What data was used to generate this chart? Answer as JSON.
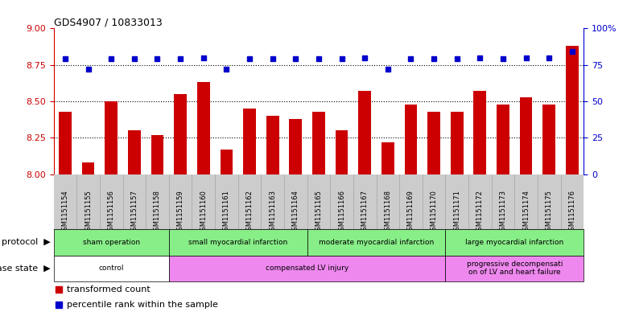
{
  "title": "GDS4907 / 10833013",
  "samples": [
    "GSM1151154",
    "GSM1151155",
    "GSM1151156",
    "GSM1151157",
    "GSM1151158",
    "GSM1151159",
    "GSM1151160",
    "GSM1151161",
    "GSM1151162",
    "GSM1151163",
    "GSM1151164",
    "GSM1151165",
    "GSM1151166",
    "GSM1151167",
    "GSM1151168",
    "GSM1151169",
    "GSM1151170",
    "GSM1151171",
    "GSM1151172",
    "GSM1151173",
    "GSM1151174",
    "GSM1151175",
    "GSM1151176"
  ],
  "bar_values": [
    8.43,
    8.08,
    8.5,
    8.3,
    8.27,
    8.55,
    8.63,
    8.17,
    8.45,
    8.4,
    8.38,
    8.43,
    8.3,
    8.57,
    8.22,
    8.48,
    8.43,
    8.43,
    8.57,
    8.48,
    8.53,
    8.48,
    8.88
  ],
  "percentile_values": [
    79,
    72,
    79,
    79,
    79,
    79,
    80,
    72,
    79,
    79,
    79,
    79,
    79,
    80,
    72,
    79,
    79,
    79,
    80,
    79,
    80,
    80,
    84
  ],
  "bar_color": "#cc0000",
  "dot_color": "#0000cc",
  "ylim_left": [
    8.0,
    9.0
  ],
  "ylim_right": [
    0,
    100
  ],
  "yticks_left": [
    8.0,
    8.25,
    8.5,
    8.75,
    9.0
  ],
  "yticks_right": [
    0,
    25,
    50,
    75,
    100
  ],
  "grid_values": [
    8.25,
    8.5,
    8.75
  ],
  "proto_groups": [
    {
      "label": "sham operation",
      "start": 0,
      "end": 5
    },
    {
      "label": "small myocardial infarction",
      "start": 5,
      "end": 11
    },
    {
      "label": "moderate myocardial infarction",
      "start": 11,
      "end": 17
    },
    {
      "label": "large myocardial infarction",
      "start": 17,
      "end": 23
    }
  ],
  "disease_groups": [
    {
      "label": "control",
      "start": 0,
      "end": 5,
      "color": "#ffffff"
    },
    {
      "label": "compensated LV injury",
      "start": 5,
      "end": 17,
      "color": "#ee88ee"
    },
    {
      "label": "progressive decompensati\non of LV and heart failure",
      "start": 17,
      "end": 23,
      "color": "#ee88ee"
    }
  ],
  "proto_color": "#88ee88",
  "protocol_label": "protocol",
  "disease_label": "disease state",
  "legend_bar_label": "transformed count",
  "legend_dot_label": "percentile rank within the sample",
  "bg_color": "#ffffff",
  "left_color": "#cc0000",
  "right_color": "#0000cc",
  "grey_band": "#cccccc"
}
